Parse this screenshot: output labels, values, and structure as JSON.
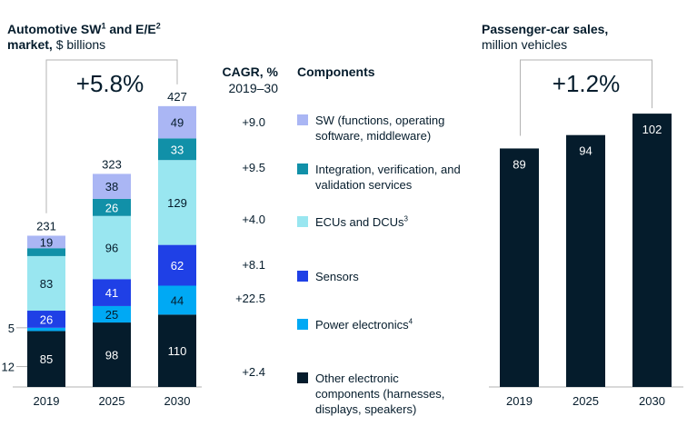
{
  "chart_data": [
    {
      "type": "bar",
      "stacked": true,
      "title_bold_part1": "Automotive SW",
      "title_sup1": "1",
      "title_bold_part2": " and E/E",
      "title_sup2": "2",
      "title_bold_part3": "market,",
      "title_rest": " $ billions",
      "categories": [
        "2019",
        "2025",
        "2030"
      ],
      "totals": [
        231,
        323,
        427
      ],
      "growth_label": "+5.8%",
      "cagr_header": "CAGR, %",
      "cagr_period": "2019–30",
      "components_header": "Components",
      "side_labels": [
        {
          "value": "12",
          "level": 31
        },
        {
          "value": "5",
          "level": 90
        }
      ],
      "series": [
        {
          "name": "Other electronic components (harnesses, displays, speakers)",
          "cagr": "+2.4",
          "color": "#051c2c",
          "text_color": "#ffffff",
          "values": [
            85,
            98,
            110
          ],
          "labels": [
            "85",
            "98",
            "110"
          ]
        },
        {
          "name": "Power electronics",
          "name_sup": "4",
          "cagr": "+22.5",
          "color": "#00a9f4",
          "text_color": "#051c2c",
          "values": [
            5,
            25,
            44
          ],
          "labels": [
            "",
            "25",
            "44"
          ]
        },
        {
          "name": "Sensors",
          "cagr": "+8.1",
          "color": "#1f40e6",
          "text_color": "#ffffff",
          "values": [
            26,
            41,
            62
          ],
          "labels": [
            "26",
            "41",
            "62"
          ]
        },
        {
          "name": "ECUs and DCUs",
          "name_sup": "3",
          "cagr": "+4.0",
          "color": "#99e6f0",
          "text_color": "#051c2c",
          "values": [
            83,
            96,
            129
          ],
          "labels": [
            "83",
            "96",
            "129"
          ]
        },
        {
          "name": "Integration, verification, and validation services",
          "cagr": "+9.5",
          "color": "#1190a8",
          "text_color": "#ffffff",
          "values": [
            12,
            26,
            33
          ],
          "labels": [
            "",
            "26",
            "33"
          ]
        },
        {
          "name": "SW (functions, operating software, middleware)",
          "cagr": "+9.0",
          "color": "#aab6f4",
          "text_color": "#051c2c",
          "values": [
            19,
            38,
            49
          ],
          "labels": [
            "19",
            "38",
            "49"
          ]
        }
      ]
    },
    {
      "type": "bar",
      "title_bold": "Passenger-car sales,",
      "title_rest": "million vehicles",
      "categories": [
        "2019",
        "2025",
        "2030"
      ],
      "values": [
        89,
        94,
        102
      ],
      "labels": [
        "89",
        "94",
        "102"
      ],
      "growth_label": "+1.2%",
      "color": "#051c2c"
    }
  ]
}
